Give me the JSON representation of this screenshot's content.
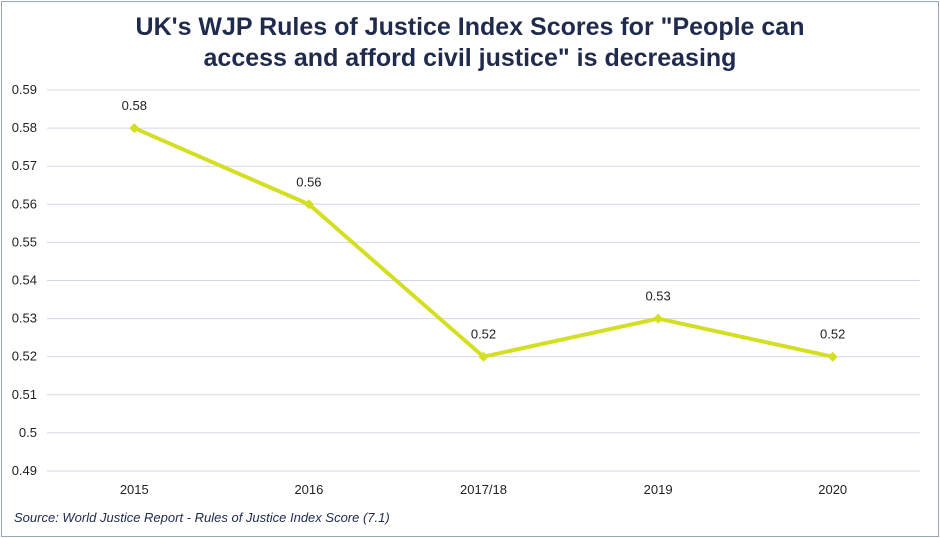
{
  "chart_data": {
    "type": "line",
    "title_lines": [
      "UK's WJP Rules of Justice Index Scores for \"People can",
      "access and afford civil justice\" is decreasing"
    ],
    "categories": [
      "2015",
      "2016",
      "2017/18",
      "2019",
      "2020"
    ],
    "series": [
      {
        "values": [
          0.58,
          0.56,
          0.52,
          0.53,
          0.52
        ],
        "data_labels": [
          "0.58",
          "0.56",
          "0.52",
          "0.53",
          "0.52"
        ],
        "color": "#d4df23",
        "marker": "diamond"
      }
    ],
    "ylim": [
      0.49,
      0.59
    ],
    "yticks": [
      "0.49",
      "0.5",
      "0.51",
      "0.52",
      "0.53",
      "0.54",
      "0.55",
      "0.56",
      "0.57",
      "0.58",
      "0.59"
    ],
    "grid": true,
    "gridline_color": "#d0d8e4",
    "source": "Source: World Justice Report - Rules of Justice Index Score (7.1)"
  }
}
